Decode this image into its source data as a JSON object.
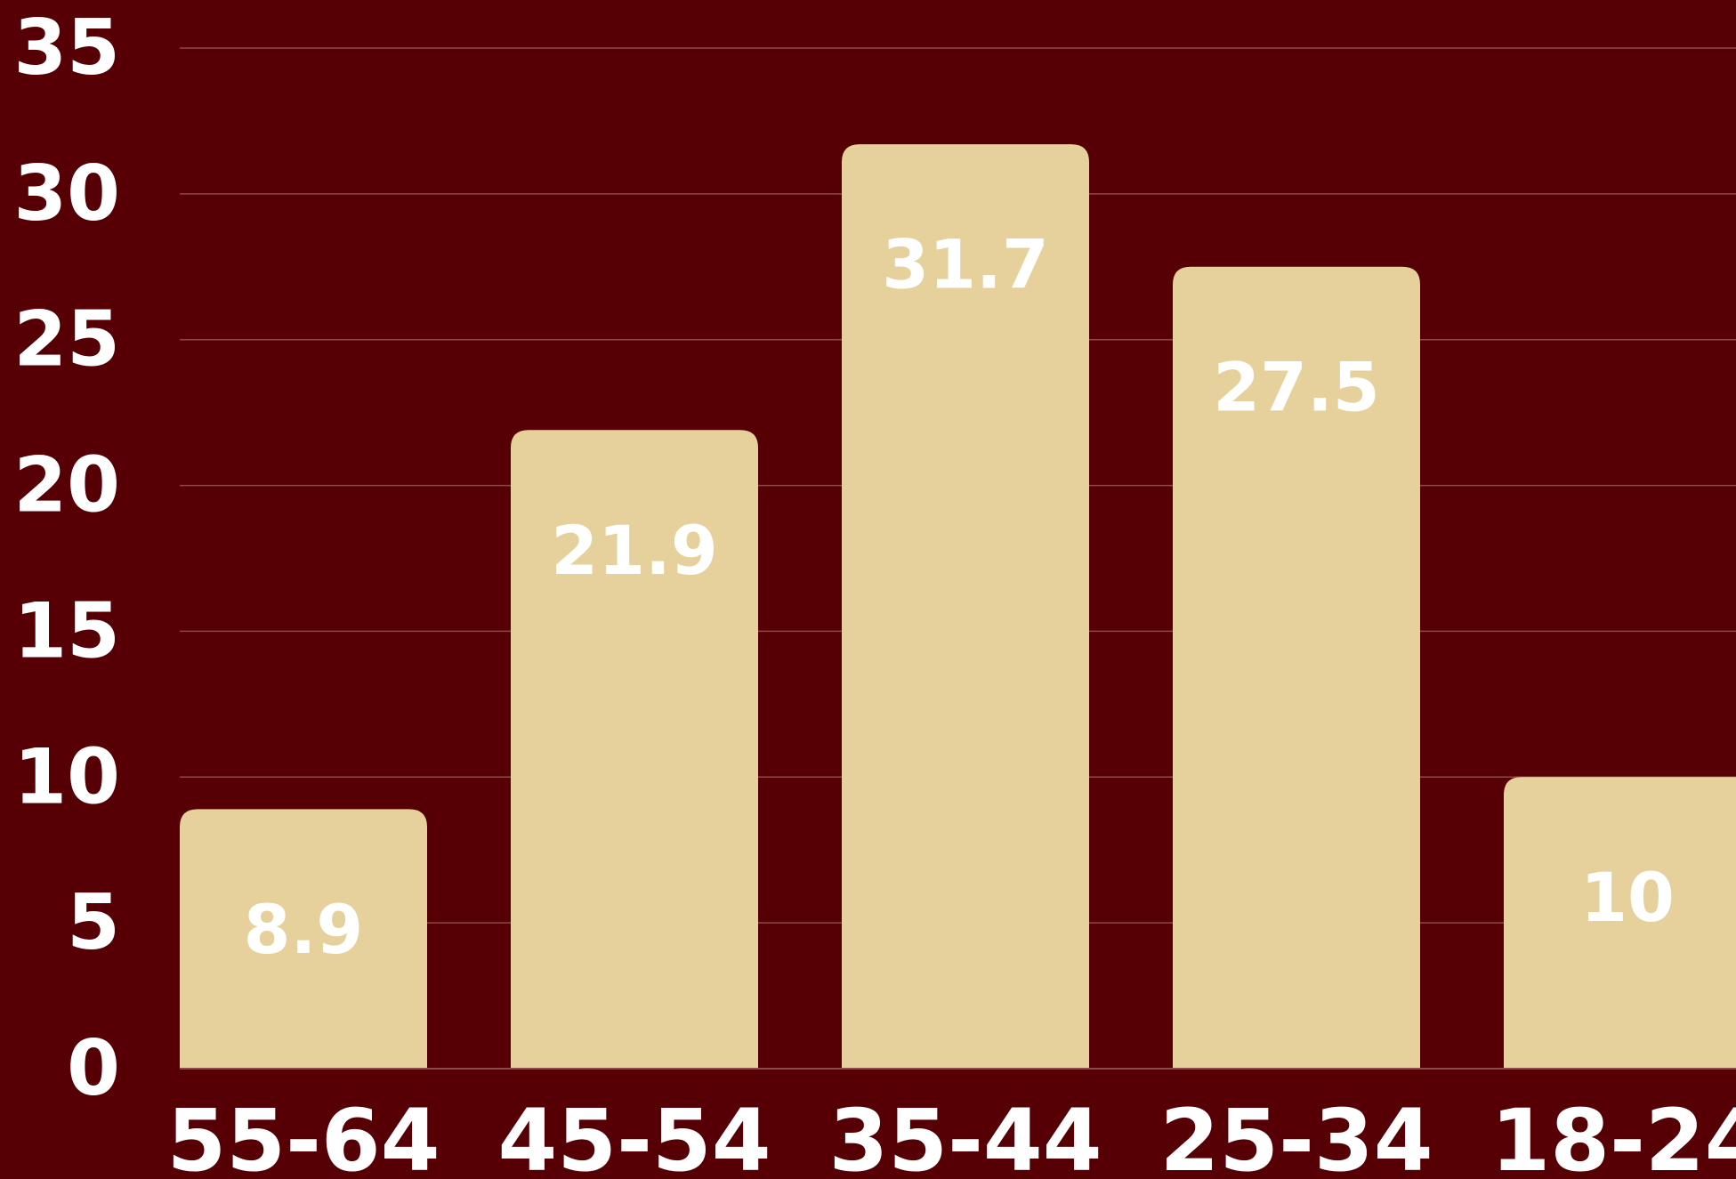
{
  "chart_data": {
    "type": "bar",
    "title": "",
    "xlabel": "",
    "ylabel": "",
    "categories": [
      "55-64",
      "45-54",
      "35-44",
      "25-34",
      "18-24"
    ],
    "values": [
      8.9,
      21.9,
      31.7,
      27.5,
      10
    ],
    "value_labels": [
      "8.9",
      "21.9",
      "31.7",
      "27.5",
      "10"
    ],
    "ylim": [
      0,
      35
    ],
    "yticks": [
      0,
      5,
      10,
      15,
      20,
      25,
      30,
      35
    ],
    "ytick_labels": [
      "0",
      "5",
      "10",
      "15",
      "20",
      "25",
      "30",
      "35"
    ],
    "grid": true,
    "legend": "none"
  },
  "colors": {
    "background": "#560005",
    "bar": "#E6D19C",
    "text": "#FFFFFF",
    "gridline": "#8A4A4A"
  }
}
